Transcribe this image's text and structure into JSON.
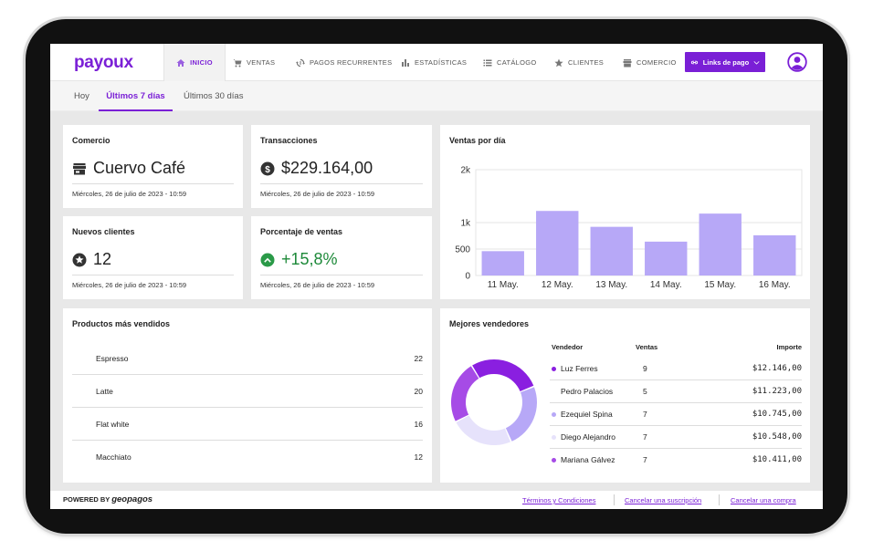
{
  "brand": {
    "logo": "payoux",
    "accent": "#7a1fd6"
  },
  "nav": {
    "items": [
      {
        "label": "INICIO",
        "icon": "home-icon",
        "active": true
      },
      {
        "label": "VENTAS",
        "icon": "cart-icon"
      },
      {
        "label": "PAGOS RECURRENTES",
        "icon": "recurring-payments-icon"
      },
      {
        "label": "ESTADÍSTICAS",
        "icon": "bar-chart-icon"
      },
      {
        "label": "CATÁLOGO",
        "icon": "list-icon"
      },
      {
        "label": "CLIENTES",
        "icon": "star-icon"
      },
      {
        "label": "COMERCIO",
        "icon": "store-icon"
      }
    ],
    "links_button": "Links de pago"
  },
  "subtabs": [
    "Hoy",
    "Últimos 7 días",
    "Últimos 30 días"
  ],
  "cards": {
    "comercio": {
      "title": "Comercio",
      "value": "Cuervo Café",
      "date": "Miércoles, 26 de julio de 2023 - 10:59"
    },
    "transacciones": {
      "title": "Transacciones",
      "value": "$229.164,00",
      "date": "Miércoles, 26 de julio de 2023 - 10:59"
    },
    "nuevos_clientes": {
      "title": "Nuevos clientes",
      "value": "12",
      "date": "Miércoles, 26 de julio de 2023 - 10:59"
    },
    "porcentaje": {
      "title": "Porcentaje de ventas",
      "value": "+15,8%",
      "date": "Miércoles, 26 de julio de 2023 - 10:59",
      "color": "#1e8a3a"
    }
  },
  "chart_data": {
    "type": "bar",
    "title": "Ventas por día",
    "categories": [
      "11 May.",
      "12 May.",
      "13 May.",
      "14 May.",
      "15 May.",
      "16 May."
    ],
    "values": [
      460,
      1220,
      920,
      640,
      1170,
      760
    ],
    "ylim": [
      0,
      2000
    ],
    "yticks": [
      {
        "v": 0,
        "label": "0"
      },
      {
        "v": 500,
        "label": "500"
      },
      {
        "v": 1000,
        "label": "1k"
      },
      {
        "v": 2000,
        "label": "2k"
      }
    ],
    "bar_color": "#b7a8f7"
  },
  "products": {
    "title": "Productos más vendidos",
    "items": [
      {
        "name": "Espresso",
        "qty": "22"
      },
      {
        "name": "Latte",
        "qty": "20"
      },
      {
        "name": "Flat white",
        "qty": "16"
      },
      {
        "name": "Macchiato",
        "qty": "12"
      }
    ]
  },
  "sellers": {
    "title": "Mejores vendedores",
    "headers": {
      "name": "Vendedor",
      "sales": "Ventas",
      "amount": "Importe"
    },
    "rows": [
      {
        "name": "Luz Ferres",
        "sales": "9",
        "amount": "$12.146,00",
        "color": "#8a1fe0"
      },
      {
        "name": "Pedro Palacios",
        "sales": "5",
        "amount": "$11.223,00",
        "color": "#ffffff"
      },
      {
        "name": "Ezequiel Spina",
        "sales": "7",
        "amount": "$10.745,00",
        "color": "#b7a8f7"
      },
      {
        "name": "Diego Alejandro",
        "sales": "7",
        "amount": "$10.548,00",
        "color": "#e6e2fb"
      },
      {
        "name": "Mariana Gálvez",
        "sales": "7",
        "amount": "$10.411,00",
        "color": "#a64be6"
      }
    ],
    "donut": [
      {
        "name": "Luz Ferres",
        "value": 12146,
        "color": "#8a1fe0"
      },
      {
        "name": "Ezequiel Spina",
        "value": 10745,
        "color": "#b7a8f7"
      },
      {
        "name": "Diego Alejandro",
        "value": 10548,
        "color": "#e6e2fb"
      },
      {
        "name": "Mariana Gálvez",
        "value": 10411,
        "color": "#a64be6"
      }
    ]
  },
  "footer": {
    "powered": "POWERED BY",
    "brand": "geopagos",
    "links": [
      "Términos y Condiciones",
      "Cancelar una suscripción",
      "Cancelar una compra"
    ]
  }
}
